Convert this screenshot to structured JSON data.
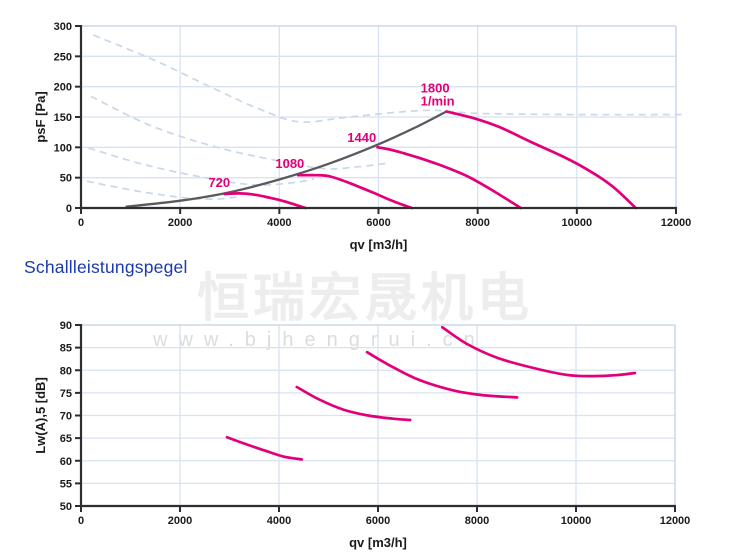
{
  "watermark": {
    "line1": "恒瑞宏晟机电",
    "line2": "www.bjhengrui.cn"
  },
  "section_title": "Schallleistungspegel",
  "colors": {
    "magenta": "#e2007a",
    "system_gray": "#5a5a5e",
    "dashed_blue": "#c9d8e8",
    "grid": "#d8e2f0",
    "border": "#c8d5e6",
    "axis": "#2e2e30",
    "text": "#1b1b1b",
    "title_blue": "#1a39b0",
    "watermark_gray": "#ededed",
    "watermark_url_gray": "#dcdcdc"
  },
  "chart_data": [
    {
      "type": "line",
      "title": "",
      "xlabel": "qv [m3/h]",
      "ylabel": "psF [Pa]",
      "xlim": [
        0,
        12000
      ],
      "ylim": [
        0,
        300
      ],
      "xtick_step": 2000,
      "ytick_step": 50,
      "grid": true,
      "legend_position": "none",
      "series": [
        {
          "name": "720",
          "unit": "1/min",
          "label_lines": [
            "720"
          ],
          "label_at": [
            2570,
            35
          ],
          "points": [
            [
              2900,
              23
            ],
            [
              3200,
              24
            ],
            [
              3500,
              22
            ],
            [
              3800,
              17
            ],
            [
              4100,
              11
            ],
            [
              4530,
              0
            ]
          ]
        },
        {
          "name": "1080",
          "unit": "1/min",
          "label_lines": [
            "1080"
          ],
          "label_at": [
            3920,
            66
          ],
          "points": [
            [
              4380,
              54
            ],
            [
              4750,
              54
            ],
            [
              5030,
              52
            ],
            [
              5450,
              40
            ],
            [
              5900,
              25
            ],
            [
              6300,
              11
            ],
            [
              6670,
              0
            ]
          ]
        },
        {
          "name": "1440",
          "unit": "1/min",
          "label_lines": [
            "1440"
          ],
          "label_at": [
            5370,
            109
          ],
          "points": [
            [
              5980,
              100
            ],
            [
              6300,
              95
            ],
            [
              6800,
              83
            ],
            [
              7300,
              69
            ],
            [
              7800,
              52
            ],
            [
              8300,
              29
            ],
            [
              8870,
              0
            ]
          ]
        },
        {
          "name": "1800",
          "unit": "1/min",
          "label_lines": [
            "1800",
            "1/min"
          ],
          "label_at": [
            6850,
            190
          ],
          "points": [
            [
              7370,
              159
            ],
            [
              7920,
              148
            ],
            [
              8450,
              133
            ],
            [
              9070,
              109
            ],
            [
              9740,
              84
            ],
            [
              10220,
              63
            ],
            [
              10700,
              37
            ],
            [
              11190,
              0
            ]
          ]
        }
      ],
      "system_curve": {
        "points": [
          [
            900,
            2
          ],
          [
            2000,
            12
          ],
          [
            3000,
            26
          ],
          [
            4000,
            47
          ],
          [
            5000,
            73
          ],
          [
            6000,
            105
          ],
          [
            6800,
            135
          ],
          [
            7370,
            159
          ]
        ]
      },
      "aux_dashed_curves": [
        {
          "points": [
            [
              250,
              285
            ],
            [
              1500,
              243
            ],
            [
              2600,
              200
            ],
            [
              3600,
              163
            ],
            [
              4400,
              142
            ],
            [
              5300,
              149
            ],
            [
              6400,
              158
            ],
            [
              7150,
              161
            ],
            [
              8000,
              156
            ],
            [
              10000,
              154
            ],
            [
              12200,
              154
            ]
          ]
        },
        {
          "points": [
            [
              200,
              184
            ],
            [
              1400,
              136
            ],
            [
              2700,
              101
            ],
            [
              3900,
              79
            ],
            [
              4900,
              65
            ],
            [
              5600,
              68
            ],
            [
              6200,
              74
            ]
          ]
        },
        {
          "points": [
            [
              150,
              99
            ],
            [
              1300,
              71
            ],
            [
              2500,
              50
            ],
            [
              3500,
              38
            ],
            [
              4300,
              42
            ],
            [
              4700,
              48
            ]
          ]
        },
        {
          "points": [
            [
              120,
              44
            ],
            [
              1200,
              27
            ],
            [
              2200,
              16
            ],
            [
              2800,
              15
            ],
            [
              3200,
              19
            ]
          ]
        }
      ]
    },
    {
      "type": "line",
      "title": "Schallleistungspegel",
      "xlabel": "qv [m3/h]",
      "ylabel": "Lw(A),5 [dB]",
      "xlim": [
        0,
        12000
      ],
      "ylim": [
        50,
        90
      ],
      "xtick_step": 2000,
      "ytick_step": 5,
      "grid": true,
      "legend_position": "none",
      "series": [
        {
          "name": "720",
          "unit": "1/min",
          "points": [
            [
              2950,
              65.2
            ],
            [
              3300,
              63.8
            ],
            [
              3700,
              62.3
            ],
            [
              4100,
              60.9
            ],
            [
              4460,
              60.3
            ]
          ]
        },
        {
          "name": "1080",
          "unit": "1/min",
          "points": [
            [
              4360,
              76.3
            ],
            [
              4800,
              73.6
            ],
            [
              5300,
              71.3
            ],
            [
              5800,
              70.0
            ],
            [
              6300,
              69.3
            ],
            [
              6650,
              69.0
            ]
          ]
        },
        {
          "name": "1440",
          "unit": "1/min",
          "points": [
            [
              5780,
              84.0
            ],
            [
              6200,
              81.3
            ],
            [
              6800,
              78.0
            ],
            [
              7500,
              75.6
            ],
            [
              8100,
              74.5
            ],
            [
              8810,
              74.0
            ]
          ]
        },
        {
          "name": "1800",
          "unit": "1/min",
          "points": [
            [
              7300,
              89.5
            ],
            [
              7800,
              85.8
            ],
            [
              8400,
              82.8
            ],
            [
              9100,
              80.6
            ],
            [
              9800,
              79.0
            ],
            [
              10300,
              78.7
            ],
            [
              10800,
              78.9
            ],
            [
              11190,
              79.4
            ]
          ]
        }
      ]
    }
  ]
}
